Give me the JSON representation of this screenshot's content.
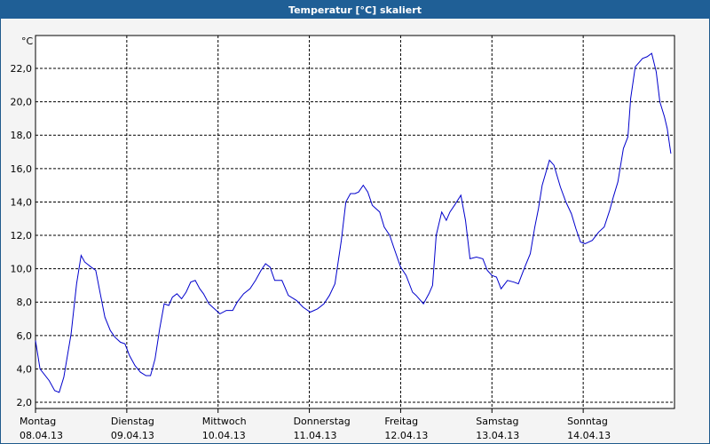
{
  "chart_data": {
    "type": "line",
    "title": "Temperatur [°C] skaliert",
    "y_unit": "°C",
    "color": "#0000cc",
    "grid": true,
    "xlim": [
      0,
      7
    ],
    "ylim": [
      1.63,
      23.97
    ],
    "xticks": [
      {
        "value": 0,
        "label": "Montag"
      },
      {
        "value": 1,
        "label": "Dienstag"
      },
      {
        "value": 2,
        "label": "Mittwoch"
      },
      {
        "value": 3,
        "label": "Donnerstag"
      },
      {
        "value": 4,
        "label": "Freitag"
      },
      {
        "value": 5,
        "label": "Samstag"
      },
      {
        "value": 6,
        "label": "Sonntag"
      }
    ],
    "xtick_dates": [
      "08.04.13",
      "09.04.13",
      "10.04.13",
      "11.04.13",
      "12.04.13",
      "13.04.13",
      "14.04.13"
    ],
    "yticks": [
      {
        "value": 2,
        "label": "2,0"
      },
      {
        "value": 4,
        "label": "4,0"
      },
      {
        "value": 6,
        "label": "6,0"
      },
      {
        "value": 8,
        "label": "8,0"
      },
      {
        "value": 10,
        "label": "10,0"
      },
      {
        "value": 12,
        "label": "12,0"
      },
      {
        "value": 14,
        "label": "14,0"
      },
      {
        "value": 16,
        "label": "16,0"
      },
      {
        "value": 18,
        "label": "18,0"
      },
      {
        "value": 20,
        "label": "20,0"
      },
      {
        "value": 22,
        "label": "22,0"
      }
    ],
    "x": [
      0,
      0.05,
      0.15,
      0.21,
      0.26,
      0.31,
      0.39,
      0.45,
      0.5,
      0.54,
      0.61,
      0.66,
      0.71,
      0.76,
      0.82,
      0.87,
      0.93,
      0.98,
      1.03,
      1.09,
      1.15,
      1.21,
      1.26,
      1.31,
      1.36,
      1.41,
      1.46,
      1.5,
      1.55,
      1.6,
      1.65,
      1.7,
      1.75,
      1.8,
      1.84,
      1.9,
      1.96,
      2.02,
      2.09,
      2.16,
      2.21,
      2.28,
      2.35,
      2.41,
      2.47,
      2.52,
      2.57,
      2.62,
      2.7,
      2.77,
      2.86,
      2.93,
      3.01,
      3.09,
      3.16,
      3.22,
      3.28,
      3.35,
      3.4,
      3.45,
      3.5,
      3.54,
      3.59,
      3.64,
      3.69,
      3.77,
      3.82,
      3.88,
      3.93,
      4.0,
      4.06,
      4.13,
      4.17,
      4.25,
      4.31,
      4.35,
      4.39,
      4.45,
      4.5,
      4.54,
      4.59,
      4.66,
      4.71,
      4.76,
      4.83,
      4.9,
      4.95,
      5.0,
      5.05,
      5.1,
      5.17,
      5.24,
      5.29,
      5.36,
      5.42,
      5.47,
      5.51,
      5.55,
      5.63,
      5.68,
      5.75,
      5.81,
      5.87,
      5.92,
      5.97,
      6.02,
      6.1,
      6.17,
      6.23,
      6.29,
      6.33,
      6.38,
      6.44,
      6.49,
      6.52,
      6.57,
      6.65,
      6.7,
      6.75,
      6.8,
      6.84,
      6.89,
      6.92,
      6.96
    ],
    "values": [
      5.7,
      4.0,
      3.3,
      2.7,
      2.6,
      3.5,
      6.1,
      9.1,
      10.8,
      10.4,
      10.1,
      9.9,
      8.5,
      7.1,
      6.3,
      5.9,
      5.6,
      5.5,
      4.8,
      4.2,
      3.8,
      3.6,
      3.6,
      4.6,
      6.4,
      7.9,
      7.8,
      8.3,
      8.5,
      8.2,
      8.6,
      9.2,
      9.3,
      8.8,
      8.5,
      7.9,
      7.6,
      7.3,
      7.5,
      7.5,
      8.0,
      8.5,
      8.8,
      9.3,
      9.9,
      10.3,
      10.1,
      9.3,
      9.3,
      8.4,
      8.1,
      7.7,
      7.4,
      7.6,
      7.9,
      8.4,
      9.1,
      11.7,
      14.0,
      14.5,
      14.5,
      14.6,
      15.0,
      14.6,
      13.8,
      13.4,
      12.5,
      12.0,
      11.2,
      10.1,
      9.6,
      8.6,
      8.4,
      7.9,
      8.5,
      9.0,
      12.0,
      13.4,
      12.9,
      13.4,
      13.8,
      14.4,
      12.9,
      10.6,
      10.7,
      10.6,
      9.9,
      9.6,
      9.5,
      8.8,
      9.3,
      9.2,
      9.1,
      10.1,
      10.9,
      12.5,
      13.6,
      15.0,
      16.5,
      16.2,
      14.9,
      14.0,
      13.3,
      12.4,
      11.6,
      11.5,
      11.7,
      12.2,
      12.5,
      13.5,
      14.3,
      15.2,
      17.2,
      17.9,
      20.2,
      22.1,
      22.6,
      22.7,
      22.9,
      21.8,
      20.0,
      19.1,
      18.4,
      16.9
    ]
  }
}
